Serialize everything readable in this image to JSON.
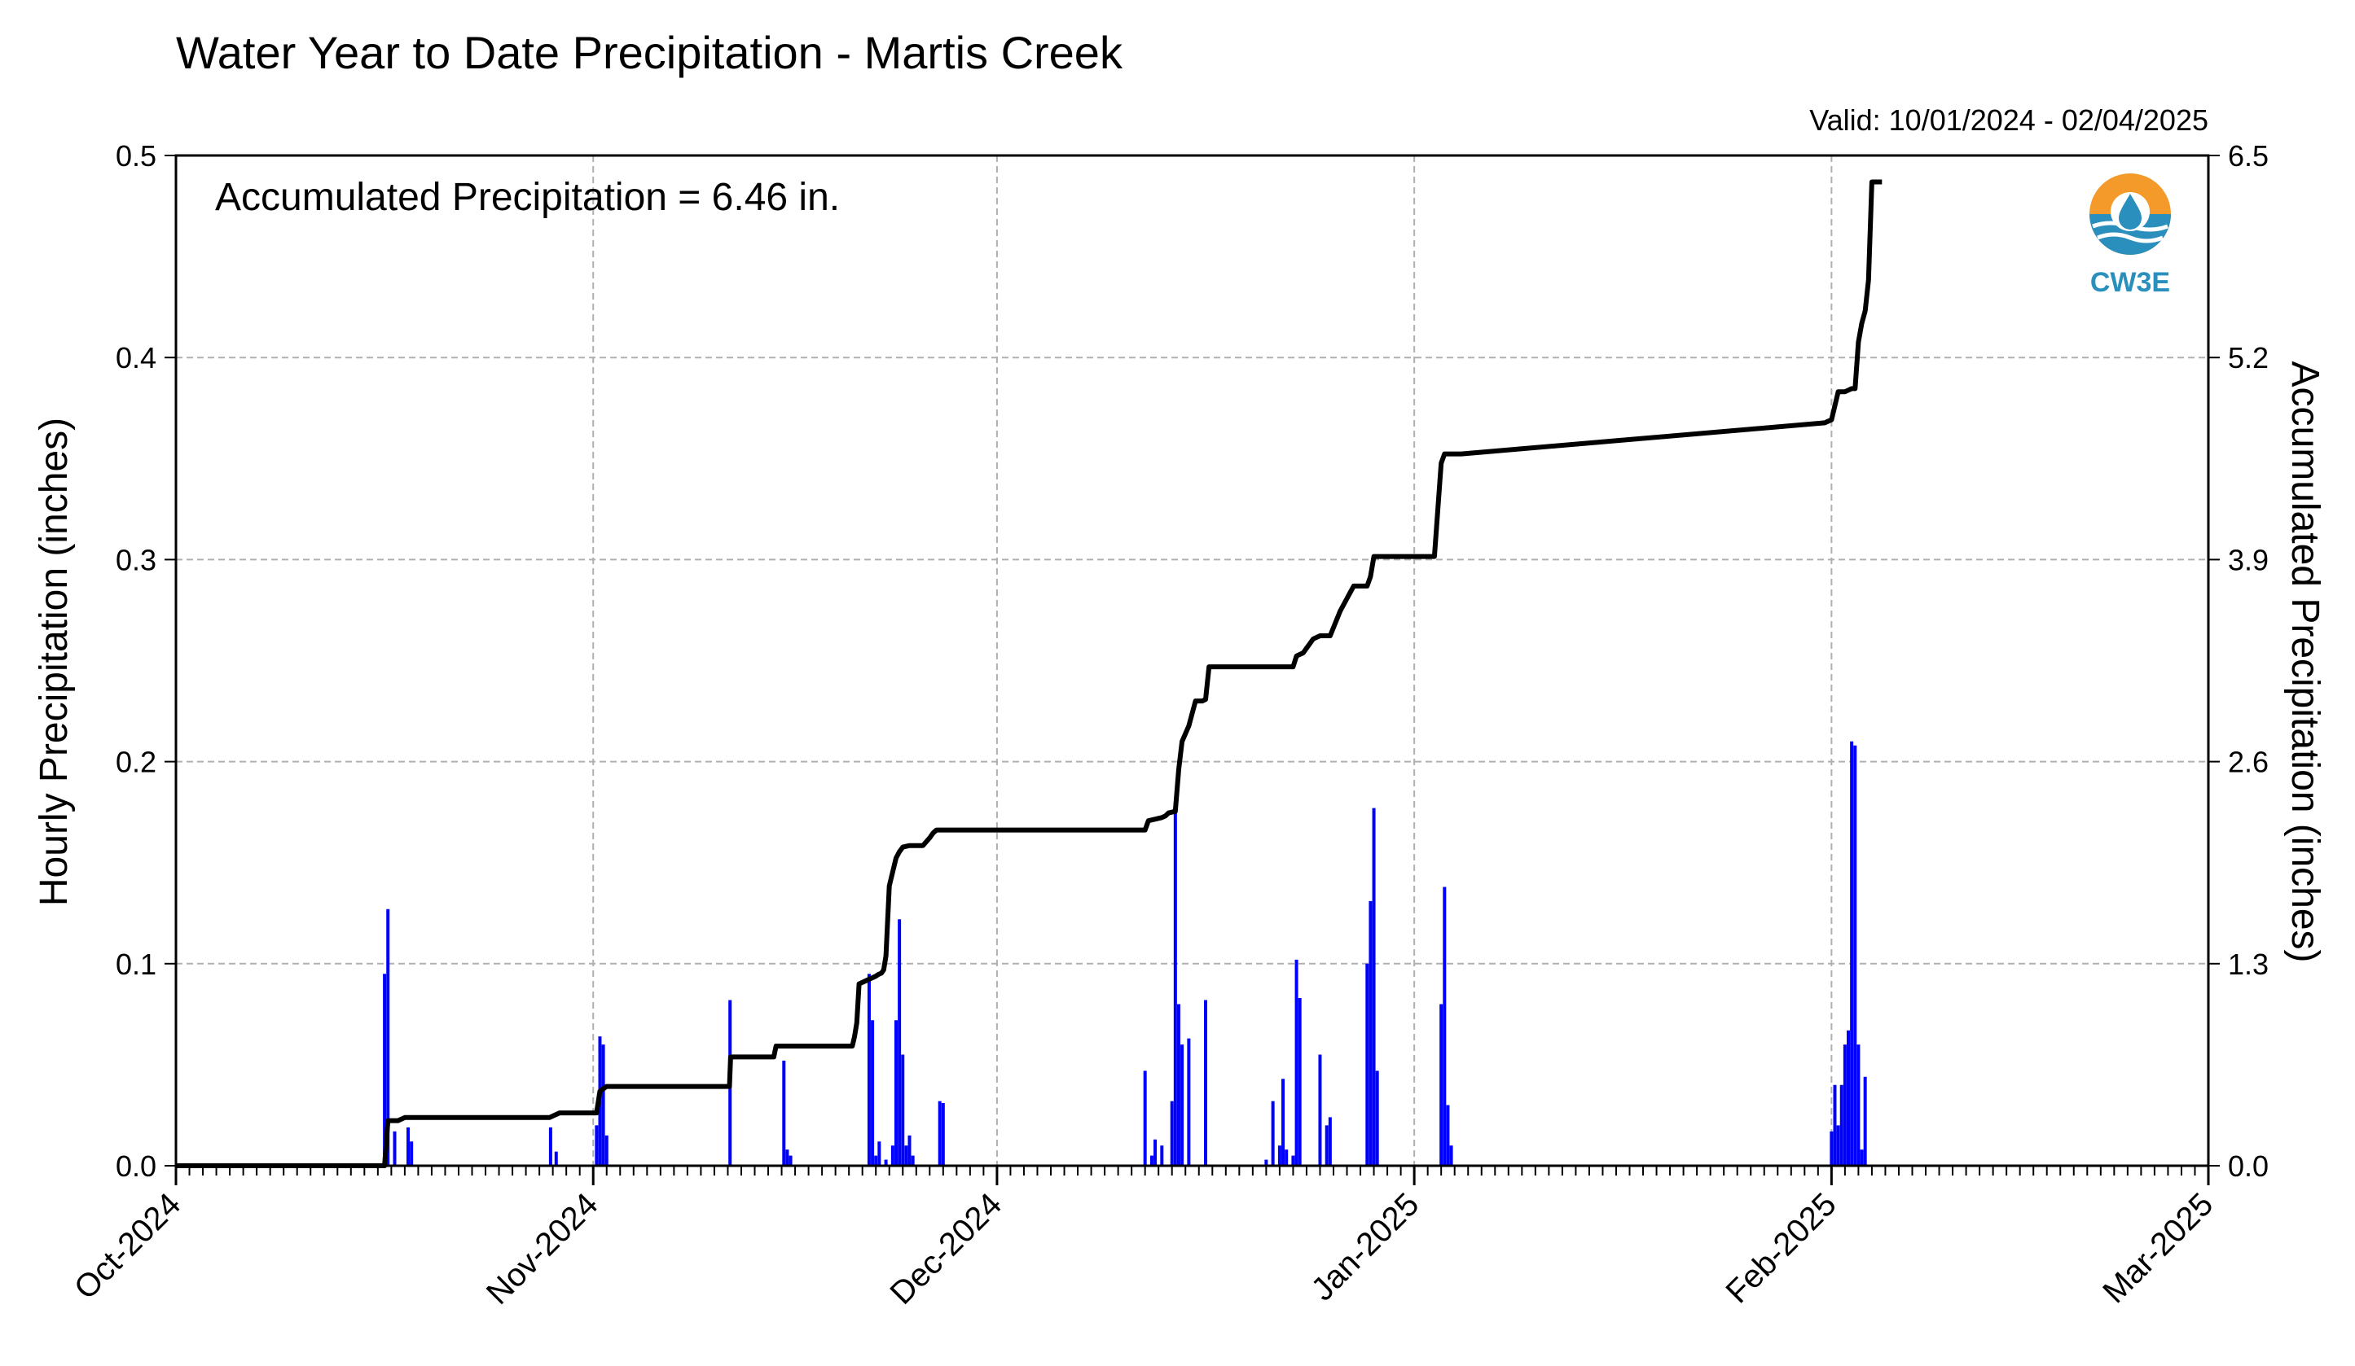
{
  "chart_data": {
    "type": "bar",
    "title": "Water Year to Date Precipitation - Martis Creek",
    "valid_text": "Valid: 10/01/2024 - 02/04/2025",
    "annotation": "Accumulated Precipitation = 6.46 in.",
    "ylabel_left": "Hourly Precipitation (inches)",
    "ylabel_right": "Accumulated Precipitation (inches)",
    "x_range": [
      "2024-10-01",
      "2025-03-01"
    ],
    "ylim_left": [
      0,
      0.5
    ],
    "ylim_right": [
      0,
      6.5
    ],
    "x_ticks": [
      {
        "date": "2024-10-01",
        "label": "Oct-2024"
      },
      {
        "date": "2024-11-01",
        "label": "Nov-2024"
      },
      {
        "date": "2024-12-01",
        "label": "Dec-2024"
      },
      {
        "date": "2025-01-01",
        "label": "Jan-2025"
      },
      {
        "date": "2025-02-01",
        "label": "Feb-2025"
      },
      {
        "date": "2025-03-01",
        "label": "Mar-2025"
      }
    ],
    "y_ticks_left": [
      "0.0",
      "0.1",
      "0.2",
      "0.3",
      "0.4",
      "0.5"
    ],
    "y_ticks_right": [
      "0.0",
      "1.3",
      "2.6",
      "3.9",
      "5.2",
      "6.5"
    ],
    "grid": true,
    "colors": {
      "hourly": "#0000ff",
      "accumulated": "#000000",
      "grid": "#b0b0b0",
      "left_label": "#0000ff"
    },
    "series": [
      {
        "type": "bar",
        "axis": "left",
        "x": [
          "2024-10-16T12:00",
          "2024-10-16T18:00",
          "2024-10-17T06:00",
          "2024-10-18T06:00",
          "2024-10-18T12:00",
          "2024-10-28T20:00",
          "2024-10-29T06:00",
          "2024-11-01T06:00",
          "2024-11-01T12:00",
          "2024-11-01T18:00",
          "2024-11-02T00:00",
          "2024-11-11T04:00",
          "2024-11-15T04:00",
          "2024-11-15T10:00",
          "2024-11-15T16:00",
          "2024-11-21T12:00",
          "2024-11-21T18:00",
          "2024-11-22T00:00",
          "2024-11-22T06:00",
          "2024-11-22T18:00",
          "2024-11-23T06:00",
          "2024-11-23T12:00",
          "2024-11-23T18:00",
          "2024-11-24T00:00",
          "2024-11-24T06:00",
          "2024-11-24T12:00",
          "2024-11-24T18:00",
          "2024-11-26T18:00",
          "2024-11-27T00:00",
          "2024-12-12T00:00",
          "2024-12-12T12:00",
          "2024-12-12T18:00",
          "2024-12-13T06:00",
          "2024-12-14T00:00",
          "2024-12-14T06:00",
          "2024-12-14T12:00",
          "2024-12-14T18:00",
          "2024-12-15T06:00",
          "2024-12-16T12:00",
          "2024-12-21T00:00",
          "2024-12-21T12:00",
          "2024-12-22T00:00",
          "2024-12-22T06:00",
          "2024-12-22T12:00",
          "2024-12-23T00:00",
          "2024-12-23T06:00",
          "2024-12-23T12:00",
          "2024-12-25T00:00",
          "2024-12-25T12:00",
          "2024-12-25T18:00",
          "2024-12-28T12:00",
          "2024-12-28T18:00",
          "2024-12-29T00:00",
          "2024-12-29T06:00",
          "2025-01-03T00:00",
          "2025-01-03T06:00",
          "2025-01-03T12:00",
          "2025-01-03T18:00",
          "2025-02-01T00:00",
          "2025-02-01T06:00",
          "2025-02-01T12:00",
          "2025-02-01T18:00",
          "2025-02-02T00:00",
          "2025-02-02T06:00",
          "2025-02-02T12:00",
          "2025-02-02T18:00",
          "2025-02-03T00:00",
          "2025-02-03T06:00",
          "2025-02-03T12:00"
        ],
        "values": [
          0.095,
          0.127,
          0.017,
          0.019,
          0.012,
          0.019,
          0.007,
          0.02,
          0.064,
          0.06,
          0.015,
          0.082,
          0.052,
          0.008,
          0.005,
          0.095,
          0.072,
          0.005,
          0.012,
          0.003,
          0.01,
          0.072,
          0.122,
          0.055,
          0.01,
          0.015,
          0.005,
          0.032,
          0.031,
          0.047,
          0.005,
          0.013,
          0.01,
          0.032,
          0.18,
          0.08,
          0.06,
          0.063,
          0.082,
          0.003,
          0.032,
          0.01,
          0.043,
          0.008,
          0.005,
          0.102,
          0.083,
          0.055,
          0.02,
          0.024,
          0.1,
          0.131,
          0.177,
          0.047,
          0.08,
          0.138,
          0.03,
          0.01,
          0.017,
          0.04,
          0.02,
          0.04,
          0.06,
          0.067,
          0.21,
          0.208,
          0.06,
          0.008,
          0.044
        ]
      },
      {
        "type": "line",
        "axis": "right",
        "x": [
          "2024-10-01T00:00",
          "2024-10-16T12:00",
          "2024-10-16T18:00",
          "2024-10-17T12:00",
          "2024-10-18T00:00",
          "2024-10-28T18:00",
          "2024-10-29T12:00",
          "2024-11-01T06:00",
          "2024-11-01T12:00",
          "2024-11-02T00:00",
          "2024-11-11T03:00",
          "2024-11-11T05:00",
          "2024-11-14T10:00",
          "2024-11-14T14:00",
          "2024-11-20T06:00",
          "2024-11-20T10:00",
          "2024-11-20T14:00",
          "2024-11-20T18:00",
          "2024-11-22T00:00",
          "2024-11-22T04:00",
          "2024-11-22T10:00",
          "2024-11-22T14:00",
          "2024-11-22T18:00",
          "2024-11-23T00:00",
          "2024-11-23T12:00",
          "2024-11-23T18:00",
          "2024-11-24T00:00",
          "2024-11-24T12:00",
          "2024-11-24T18:00",
          "2024-11-25T12:00",
          "2024-11-26T00:00",
          "2024-11-26T06:00",
          "2024-11-26T12:00",
          "2024-12-12T00:00",
          "2024-12-12T06:00",
          "2024-12-13T06:00",
          "2024-12-13T12:00",
          "2024-12-13T18:00",
          "2024-12-14T06:00",
          "2024-12-14T12:00",
          "2024-12-14T18:00",
          "2024-12-15T06:00",
          "2024-12-15T18:00",
          "2024-12-16T06:00",
          "2024-12-16T12:00",
          "2024-12-16T18:00",
          "2024-12-20T12:00",
          "2024-12-21T00:00",
          "2024-12-21T12:00",
          "2024-12-22T00:00",
          "2024-12-22T12:00",
          "2024-12-23T00:00",
          "2024-12-23T06:00",
          "2024-12-23T18:00",
          "2024-12-24T12:00",
          "2024-12-25T00:00",
          "2024-12-25T06:00",
          "2024-12-25T18:00",
          "2024-12-26T12:00",
          "2024-12-27T12:00",
          "2024-12-28T12:00",
          "2024-12-28T18:00",
          "2024-12-29T00:00",
          "2024-12-29T12:00",
          "2025-01-02T12:00",
          "2025-01-03T00:00",
          "2025-01-03T06:00",
          "2025-01-03T12:00",
          "2025-01-04T12:00",
          "2025-01-31T12:00",
          "2025-02-01T00:00",
          "2025-02-01T12:00",
          "2025-02-02T00:00",
          "2025-02-02T06:00",
          "2025-02-02T12:00",
          "2025-02-02T18:00",
          "2025-02-03T00:00",
          "2025-02-03T06:00",
          "2025-02-03T12:00",
          "2025-02-03T18:00",
          "2025-02-04T00:00",
          "2025-02-04T18:00"
        ],
        "values": [
          0.0,
          0.0,
          0.29,
          0.29,
          0.31,
          0.31,
          0.34,
          0.34,
          0.48,
          0.51,
          0.51,
          0.7,
          0.7,
          0.77,
          0.77,
          0.83,
          0.92,
          1.17,
          1.22,
          1.23,
          1.24,
          1.26,
          1.35,
          1.8,
          1.98,
          2.02,
          2.05,
          2.06,
          2.06,
          2.06,
          2.11,
          2.14,
          2.16,
          2.16,
          2.22,
          2.24,
          2.25,
          2.27,
          2.28,
          2.55,
          2.73,
          2.83,
          2.99,
          2.99,
          3.0,
          3.21,
          3.21,
          3.21,
          3.21,
          3.21,
          3.21,
          3.21,
          3.28,
          3.3,
          3.39,
          3.41,
          3.41,
          3.41,
          3.57,
          3.73,
          3.73,
          3.79,
          3.92,
          3.92,
          3.92,
          4.52,
          4.58,
          4.58,
          4.58,
          4.78,
          4.8,
          4.98,
          4.98,
          4.99,
          5.0,
          5.0,
          5.3,
          5.42,
          5.5,
          5.7,
          6.33,
          6.33
        ]
      }
    ]
  },
  "logo": {
    "text": "CW3E",
    "colors": {
      "orange": "#f39a2b",
      "blue": "#1f77b4",
      "teal": "#2a8fbd"
    }
  }
}
